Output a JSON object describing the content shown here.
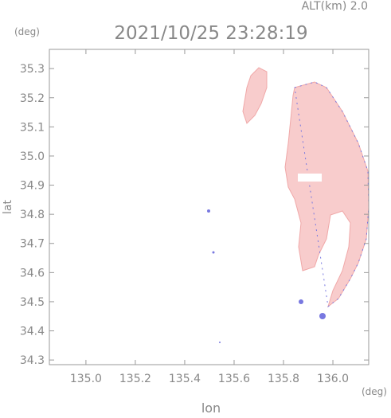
{
  "chart_data": {
    "type": "map",
    "title": "2021/10/25 23:28:19",
    "subtitle": "ALT(km) 2.0",
    "y_unit": "(deg)",
    "x_unit": "(deg)",
    "xlabel": "lon",
    "ylabel": "lat",
    "xlim": [
      134.852,
      136.145
    ],
    "ylim": [
      34.284,
      35.366
    ],
    "xticks": [
      {
        "value": 135.0,
        "label": "135.0"
      },
      135.2,
      135.4,
      135.6,
      135.8,
      {
        "value": 136.0,
        "label": "136.0"
      }
    ],
    "yticks": [
      34.3,
      34.4,
      34.5,
      34.6,
      34.7,
      34.8,
      34.9,
      {
        "value": 35.0,
        "label": "35.0"
      },
      35.1,
      35.2,
      35.3
    ]
  }
}
